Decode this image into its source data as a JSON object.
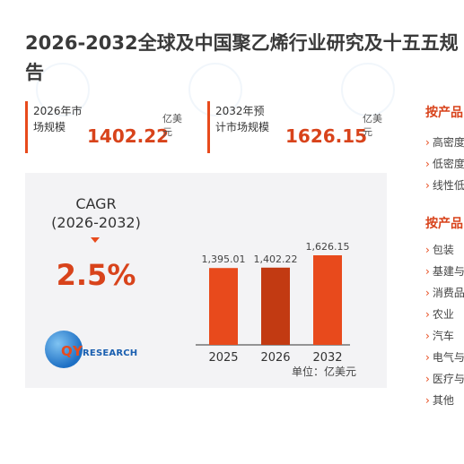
{
  "page": {
    "title_line1": "2026-2032全球及中国聚乙烯行业研究及十五五规",
    "title_line2": "告"
  },
  "stats": [
    {
      "label": "2026年市场规模",
      "value": "1402.22",
      "unit": "亿美元"
    },
    {
      "label": "2032年预计市场规模",
      "value": "1626.15",
      "unit": "亿美元"
    }
  ],
  "cagr": {
    "label": "CAGR",
    "period": "(2026-2032)",
    "value": "2.5%"
  },
  "logo": {
    "prefix": "QY",
    "suffix": "RESEARCH"
  },
  "unit_note": "单位：亿美元",
  "chart_data": {
    "type": "bar",
    "categories": [
      "2025",
      "2026",
      "2032"
    ],
    "values": [
      1395.01,
      1402.22,
      1626.15
    ],
    "value_labels": [
      "1,395.01",
      "1,402.22",
      "1,626.15"
    ],
    "colors": [
      "#e84a1c",
      "#c23a12",
      "#e84a1c"
    ],
    "title": "",
    "xlabel": "",
    "ylabel": ""
  },
  "sidebar": {
    "sections": [
      {
        "heading": "按产品",
        "items": [
          "高密度",
          "低密度",
          "线性低"
        ]
      },
      {
        "heading": "按产品",
        "items": [
          "包装",
          "基建与",
          "消费品",
          "农业",
          "汽车",
          "电气与",
          "医疗与",
          "其他"
        ]
      }
    ]
  },
  "colors": {
    "accent": "#e84a1c",
    "accent_dark": "#c23a12",
    "panel_bg": "#f3f3f5"
  }
}
